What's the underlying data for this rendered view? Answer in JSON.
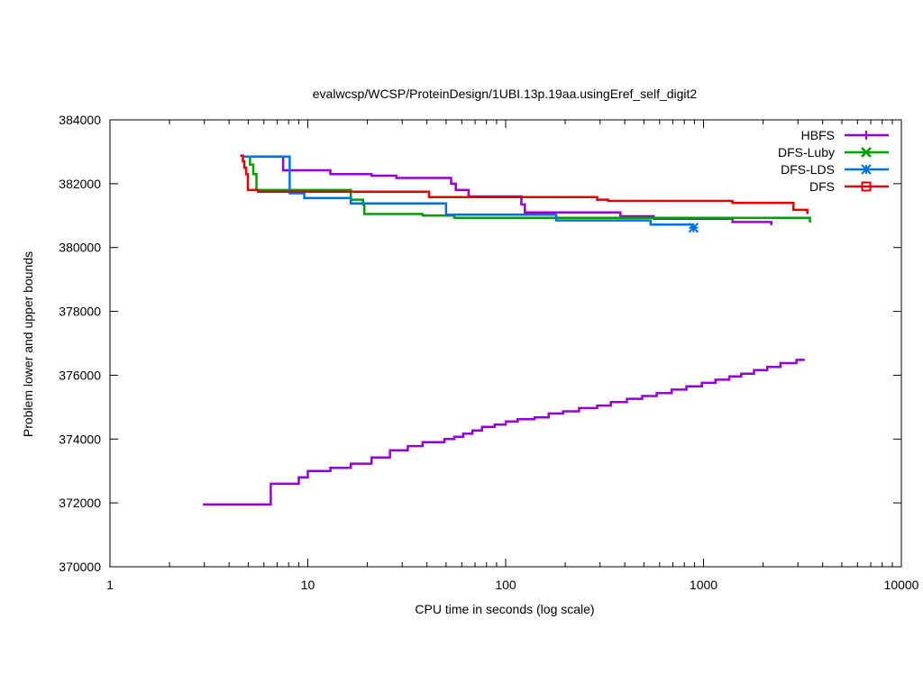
{
  "chart_data": {
    "type": "line",
    "title": "evalwcsp/WCSP/ProteinDesign/1UBI.13p.19aa.usingEref_self_digit2",
    "xlabel": "CPU time in seconds (log scale)",
    "ylabel": "Problem lower and upper bounds",
    "xscale": "log",
    "xlim": [
      1,
      10000
    ],
    "ylim": [
      370000,
      384000
    ],
    "xticks": [
      1,
      10,
      100,
      1000,
      10000
    ],
    "xtick_labels": [
      "1",
      "10",
      "100",
      "1000",
      "10000"
    ],
    "yticks": [
      370000,
      372000,
      374000,
      376000,
      378000,
      380000,
      382000,
      384000
    ],
    "ytick_labels": [
      "370000",
      "372000",
      "374000",
      "376000",
      "378000",
      "380000",
      "382000",
      "384000"
    ],
    "grid": false,
    "legend_position": "top-right",
    "series": [
      {
        "name": "HBFS",
        "color": "#9400d3",
        "marker": "plus",
        "segments": [
          [
            [
              7.3,
              382850
            ],
            [
              7.5,
              382850
            ],
            [
              7.5,
              382420
            ],
            [
              13,
              382420
            ],
            [
              13,
              382300
            ],
            [
              21,
              382300
            ],
            [
              21,
              382250
            ],
            [
              28,
              382250
            ],
            [
              28,
              382180
            ],
            [
              53,
              382180
            ],
            [
              53,
              382000
            ],
            [
              56,
              382000
            ],
            [
              56,
              381800
            ],
            [
              65,
              381800
            ],
            [
              65,
              381600
            ],
            [
              120,
              381600
            ],
            [
              120,
              381350
            ],
            [
              125,
              381350
            ],
            [
              125,
              381100
            ],
            [
              380,
              381100
            ],
            [
              380,
              380980
            ],
            [
              560,
              380980
            ],
            [
              560,
              380900
            ],
            [
              1400,
              380900
            ],
            [
              1400,
              380800
            ],
            [
              2200,
              380800
            ],
            [
              2200,
              380700
            ]
          ],
          [
            [
              2.95,
              371950
            ],
            [
              6.5,
              371950
            ],
            [
              6.5,
              372600
            ],
            [
              9,
              372600
            ],
            [
              9,
              372800
            ],
            [
              10,
              372800
            ],
            [
              10,
              373000
            ],
            [
              13,
              373000
            ],
            [
              13,
              373100
            ],
            [
              16.5,
              373100
            ],
            [
              16.5,
              373230
            ],
            [
              21,
              373230
            ],
            [
              21,
              373420
            ],
            [
              26,
              373420
            ],
            [
              26,
              373650
            ],
            [
              32,
              373650
            ],
            [
              32,
              373780
            ],
            [
              38,
              373780
            ],
            [
              38,
              373900
            ],
            [
              49,
              373900
            ],
            [
              49,
              374000
            ],
            [
              55,
              374000
            ],
            [
              55,
              374070
            ],
            [
              61,
              374070
            ],
            [
              61,
              374170
            ],
            [
              68,
              374170
            ],
            [
              68,
              374270
            ],
            [
              76,
              374270
            ],
            [
              76,
              374380
            ],
            [
              88,
              374380
            ],
            [
              88,
              374450
            ],
            [
              100,
              374450
            ],
            [
              100,
              374550
            ],
            [
              115,
              374550
            ],
            [
              115,
              374620
            ],
            [
              140,
              374620
            ],
            [
              140,
              374680
            ],
            [
              165,
              374680
            ],
            [
              165,
              374800
            ],
            [
              195,
              374800
            ],
            [
              195,
              374870
            ],
            [
              235,
              374870
            ],
            [
              235,
              374970
            ],
            [
              290,
              374970
            ],
            [
              290,
              375050
            ],
            [
              340,
              375050
            ],
            [
              340,
              375160
            ],
            [
              410,
              375160
            ],
            [
              410,
              375260
            ],
            [
              490,
              375260
            ],
            [
              490,
              375350
            ],
            [
              580,
              375350
            ],
            [
              580,
              375440
            ],
            [
              690,
              375440
            ],
            [
              690,
              375550
            ],
            [
              820,
              375550
            ],
            [
              820,
              375650
            ],
            [
              980,
              375650
            ],
            [
              980,
              375760
            ],
            [
              1150,
              375760
            ],
            [
              1150,
              375860
            ],
            [
              1350,
              375860
            ],
            [
              1350,
              375960
            ],
            [
              1550,
              375960
            ],
            [
              1550,
              376050
            ],
            [
              1800,
              376050
            ],
            [
              1800,
              376160
            ],
            [
              2100,
              376160
            ],
            [
              2100,
              376260
            ],
            [
              2450,
              376260
            ],
            [
              2450,
              376380
            ],
            [
              2950,
              376380
            ],
            [
              2950,
              376480
            ],
            [
              3250,
              376480
            ]
          ]
        ]
      },
      {
        "name": "DFS-Luby",
        "color": "#009e00",
        "marker": "x",
        "segments": [
          [
            [
              4.9,
              382850
            ],
            [
              5.1,
              382850
            ],
            [
              5.1,
              382600
            ],
            [
              5.3,
              382600
            ],
            [
              5.3,
              382300
            ],
            [
              5.5,
              382300
            ],
            [
              5.5,
              381800
            ],
            [
              16.5,
              381800
            ],
            [
              16.5,
              381500
            ],
            [
              19,
              381500
            ],
            [
              19,
              381350
            ],
            [
              19.3,
              381350
            ],
            [
              19.3,
              381050
            ],
            [
              38,
              381050
            ],
            [
              38,
              381000
            ],
            [
              55,
              381000
            ],
            [
              55,
              380930
            ],
            [
              3300,
              380930
            ],
            [
              3300,
              380930
            ],
            [
              3450,
              380930
            ],
            [
              3450,
              380780
            ]
          ]
        ]
      },
      {
        "name": "DFS-LDS",
        "color": "#0072dc",
        "marker": "star",
        "segments": [
          [
            [
              4.7,
              382850
            ],
            [
              8.1,
              382850
            ],
            [
              8.1,
              381700
            ],
            [
              9.6,
              381700
            ],
            [
              9.6,
              381550
            ],
            [
              16.5,
              381550
            ],
            [
              16.5,
              381380
            ],
            [
              50,
              381380
            ],
            [
              50,
              381030
            ],
            [
              180,
              381030
            ],
            [
              180,
              380850
            ],
            [
              540,
              380850
            ],
            [
              540,
              380720
            ],
            [
              880,
              380720
            ],
            [
              880,
              380630
            ]
          ]
        ],
        "end_point": [
          890,
          380620
        ]
      },
      {
        "name": "DFS",
        "color": "#e00000",
        "marker": "square",
        "segments": [
          [
            [
              4.55,
              382880
            ],
            [
              4.7,
              382880
            ],
            [
              4.7,
              382700
            ],
            [
              4.78,
              382700
            ],
            [
              4.78,
              382500
            ],
            [
              4.88,
              382500
            ],
            [
              4.88,
              382300
            ],
            [
              4.98,
              382300
            ],
            [
              4.98,
              381800
            ],
            [
              5.6,
              381800
            ],
            [
              5.6,
              381750
            ],
            [
              41,
              381750
            ],
            [
              41,
              381580
            ],
            [
              290,
              381580
            ],
            [
              290,
              381500
            ],
            [
              330,
              381500
            ],
            [
              330,
              381460
            ],
            [
              1400,
              381460
            ],
            [
              1400,
              381400
            ],
            [
              2850,
              381400
            ],
            [
              2850,
              381180
            ],
            [
              3350,
              381180
            ],
            [
              3350,
              381050
            ]
          ]
        ]
      }
    ]
  }
}
